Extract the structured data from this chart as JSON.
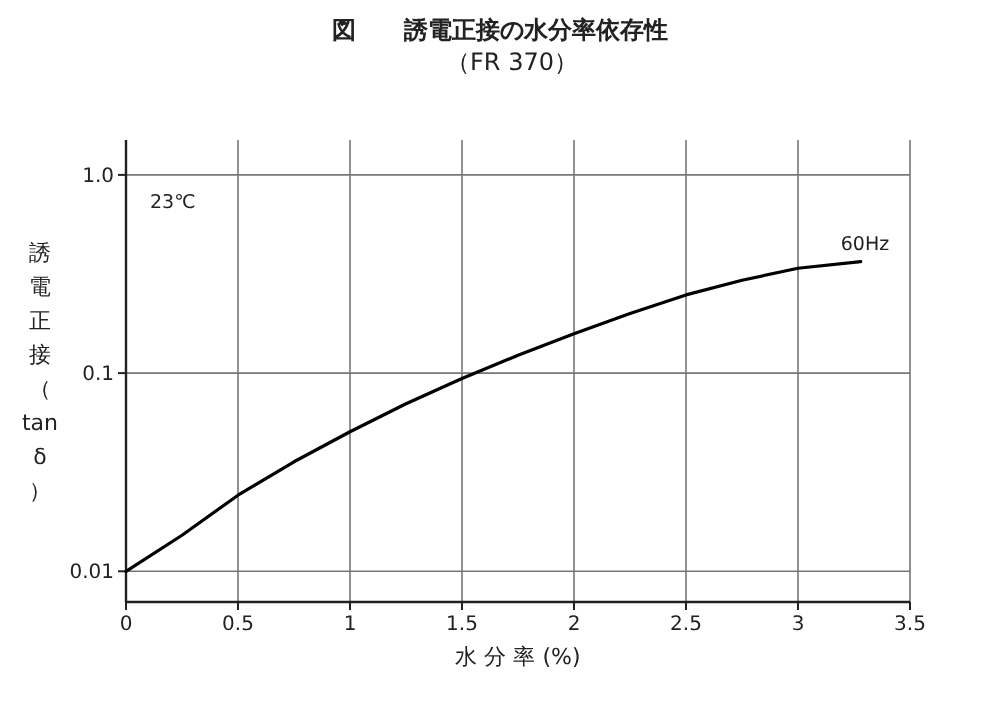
{
  "chart_data": {
    "type": "line",
    "title": "図　　誘電正接の水分率依存性",
    "subtitle": "（FR 370）",
    "xlabel": "水 分 率 (%)",
    "ylabel": "誘電正接（tanδ）",
    "annotations": [
      "23℃"
    ],
    "x": [
      0,
      0.25,
      0.5,
      0.75,
      1.0,
      1.25,
      1.5,
      1.75,
      2.0,
      2.25,
      2.5,
      2.75,
      3.0,
      3.28
    ],
    "series": [
      {
        "name": "60Hz",
        "color": "#000000",
        "values": [
          0.01,
          0.0152,
          0.0242,
          0.0357,
          0.0506,
          0.07,
          0.094,
          0.123,
          0.158,
          0.2,
          0.248,
          0.294,
          0.338,
          0.365
        ]
      }
    ],
    "log": "y",
    "xlim": [
      0,
      3.5
    ],
    "ylim": [
      0.007,
      1.5
    ],
    "xticks": [
      0,
      0.5,
      1.0,
      1.5,
      2.0,
      2.5,
      3.0,
      3.5
    ],
    "yticks": [
      0.01,
      0.1,
      {
        "value": 1,
        "label": "1.0"
      }
    ],
    "grid": true,
    "marker": "none",
    "line_style": "solid"
  }
}
